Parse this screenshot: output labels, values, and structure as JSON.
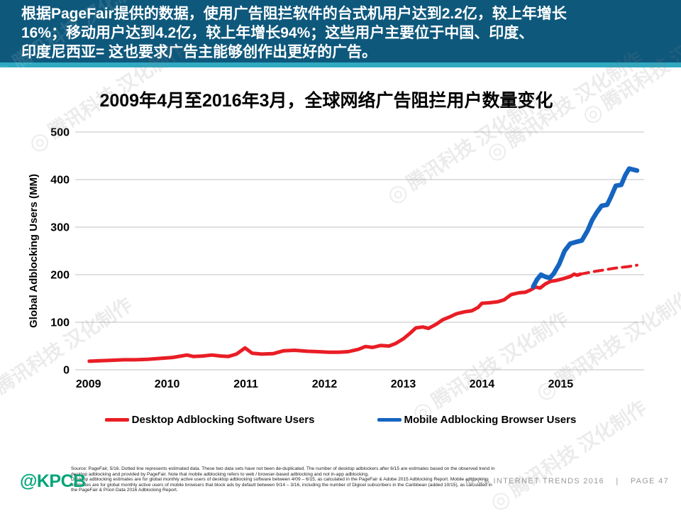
{
  "banner": {
    "line1": "根据PageFair提供的数据，使用广告阻拦软件的台式机用户达到2.2亿，较上年增长",
    "line2": "16%；移动用户达到4.2亿，较上年增长94%；这些用户主要位于中国、印度、",
    "line3": "印度尼西亚= 这也要求广告主能够创作出更好的广告。"
  },
  "title": "2009年4月至2016年3月，全球网络广告阻拦用户数量变化",
  "chart_data": {
    "type": "line",
    "title": "2009年4月至2016年3月，全球网络广告阻拦用户数量变化",
    "xlabel": "",
    "ylabel": "Global Adblocking Users (MM)",
    "ylim": [
      0,
      500
    ],
    "yticks": [
      0,
      100,
      200,
      300,
      400,
      500
    ],
    "xticks": [
      2009,
      2010,
      2011,
      2012,
      2013,
      2014,
      2015
    ],
    "xlim": [
      2008.94,
      2016.06
    ],
    "grid": true,
    "legend_position": "bottom",
    "series": [
      {
        "name": "Desktop Adblocking Software Users",
        "color": "#E91D25",
        "style": "solid",
        "x": [
          2009.01,
          2009.15,
          2009.3,
          2009.45,
          2009.6,
          2009.75,
          2009.92,
          2010.07,
          2010.18,
          2010.25,
          2010.33,
          2010.45,
          2010.57,
          2010.68,
          2010.78,
          2010.88,
          2010.99,
          2011.08,
          2011.2,
          2011.35,
          2011.48,
          2011.62,
          2011.78,
          2011.92,
          2012.05,
          2012.18,
          2012.3,
          2012.43,
          2012.52,
          2012.61,
          2012.71,
          2012.82,
          2012.9,
          2013.0,
          2013.08,
          2013.16,
          2013.25,
          2013.32,
          2013.42,
          2013.5,
          2013.6,
          2013.68,
          2013.78,
          2013.87,
          2013.95,
          2014.0,
          2014.1,
          2014.2,
          2014.28,
          2014.37,
          2014.47,
          2014.55,
          2014.62,
          2014.68,
          2014.74,
          2014.8,
          2014.87,
          2014.95,
          2015.04,
          2015.12,
          2015.17,
          2015.21,
          2015.25
        ],
        "y": [
          18,
          19,
          20,
          21,
          21,
          22,
          24,
          26,
          29,
          31,
          28,
          29,
          31,
          29,
          28,
          33,
          46,
          35,
          33,
          34,
          40,
          41,
          39,
          38,
          37,
          37,
          38,
          43,
          49,
          47,
          51,
          50,
          55,
          65,
          76,
          88,
          90,
          87,
          96,
          105,
          112,
          118,
          122,
          124,
          131,
          140,
          141,
          143,
          147,
          158,
          162,
          163,
          168,
          174,
          172,
          180,
          186,
          188,
          192,
          196,
          201,
          199,
          201
        ]
      },
      {
        "name": "Desktop Adblocking Software Users (dotted = estimated)",
        "color": "#E91D25",
        "style": "dashed",
        "x": [
          2015.25,
          2015.4,
          2015.55,
          2015.7,
          2015.86,
          2015.97
        ],
        "y": [
          201,
          206,
          210,
          214,
          217,
          220
        ]
      },
      {
        "name": "Mobile Adblocking Browser Users",
        "color": "#1565C0",
        "style": "solid",
        "x": [
          2014.65,
          2014.7,
          2014.75,
          2014.8,
          2014.86,
          2014.91,
          2014.98,
          2015.05,
          2015.12,
          2015.2,
          2015.27,
          2015.34,
          2015.4,
          2015.46,
          2015.52,
          2015.59,
          2015.64,
          2015.7,
          2015.77,
          2015.82,
          2015.87,
          2015.92,
          2015.97
        ],
        "y": [
          175,
          190,
          200,
          196,
          193,
          202,
          222,
          250,
          265,
          269,
          272,
          292,
          315,
          331,
          345,
          347,
          364,
          387,
          389,
          409,
          423,
          421,
          419
        ]
      }
    ]
  },
  "legend": [
    {
      "label": "Desktop Adblocking Software Users",
      "color": "#E91D25"
    },
    {
      "label": "Mobile Adblocking Browser Users",
      "color": "#1565C0"
    }
  ],
  "footnote_lines": [
    "Source: PageFair, 5/16. Dotted line represents estimated data. These two data sets have not been de-duplicated. The number of desktop adblockers after 6/15 are estimates based on the observed trend in",
    "desktop adblocking and provided by PageFair. Note that mobile adblocking refers to web / browser-based adblocking and not in-app adblocking.",
    "Desktop adblocking estimates are for global monthly active users of desktop adblocking software between 4/09 – 6/15, as calculated in the PageFair & Adobe 2015 Adblocking Report. Mobile adblocking",
    "estimates are for global monthly active users of mobile browsers that block ads by default between 9/14 – 3/16, including the number of Digicel subscribers in the Caribbean (added 10/15), as calculated in",
    "the PageFair & Priori Data 2016 Adblocking Report."
  ],
  "footer": {
    "logo": "@KPCB",
    "report": "KPCB INTERNET TRENDS 2016",
    "divider": "|",
    "page": "PAGE 47"
  },
  "watermark": {
    "logo_glyph": "◎",
    "text": "腾讯科技 汉化制作"
  },
  "colors": {
    "banner_bg": "#0E587C",
    "banner_stripe": "#2FA9C1",
    "desktop_red": "#E91D25",
    "mobile_blue": "#1565C0",
    "kpcb_green": "#00A478",
    "gridline": "#CDCDCD",
    "footer_gray": "#9A9A9A"
  }
}
